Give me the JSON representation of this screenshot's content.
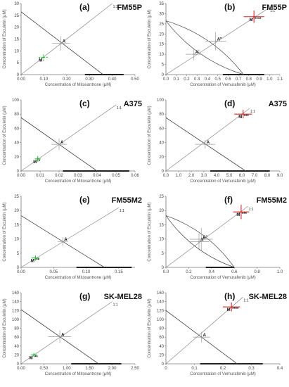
{
  "chart_data": [
    {
      "type": "line",
      "panel": "(a)",
      "cell_line": "FM55P",
      "xlabel": "Concentration of Mitoxantrone (μM)",
      "ylabel": "Concentration of Esculetin (μM)",
      "xlim": [
        0,
        0.5
      ],
      "ylim": [
        0,
        30
      ],
      "xticks": [
        0,
        0.1,
        0.2,
        0.3,
        0.4,
        0.5
      ],
      "xtick_labels": [
        "0.00",
        "0.10",
        "0.20",
        "0.30",
        "0.40",
        "0.50"
      ],
      "yticks": [
        0,
        5,
        10,
        15,
        20,
        25,
        30
      ],
      "ytick_labels": [
        "0",
        "5",
        "10",
        "15",
        "20",
        "25",
        "30"
      ],
      "isobole": [
        [
          0,
          26.5
        ],
        [
          0.36,
          0
        ]
      ],
      "ratio_line": [
        [
          0,
          0
        ],
        [
          0.4,
          30
        ]
      ],
      "ratio_label": "1:1",
      "point_A": {
        "label": "A",
        "x": 0.175,
        "y": 13.2,
        "xerr": 0.04,
        "yerr": 3
      },
      "point_M": {
        "label": "M",
        "stars": "",
        "x": 0.098,
        "y": 7.3,
        "xerr": 0.02,
        "yerr": 1.5,
        "color": "#22bb33",
        "dashed": true
      },
      "isobole_band": {
        "x": [
          0.28,
          0.45
        ]
      }
    },
    {
      "type": "line",
      "panel": "(b)",
      "cell_line": "FM55P",
      "xlabel": "Concentration of Vemurafenib (μM)",
      "ylabel": "Concentration of Esculetin (μM)",
      "xlim": [
        0,
        1.1
      ],
      "ylim": [
        0,
        35
      ],
      "xticks": [
        0,
        0.1,
        0.2,
        0.3,
        0.4,
        0.5,
        0.6,
        0.7,
        0.8,
        0.9,
        1.0,
        1.1
      ],
      "xtick_labels": [
        "0.0",
        "0.1",
        "0.2",
        "0.3",
        "0.4",
        "0.5",
        "0.6",
        "0.7",
        "0.8",
        "0.9",
        "1.0",
        "1.1"
      ],
      "yticks": [
        0,
        5,
        10,
        15,
        20,
        25,
        30,
        35
      ],
      "ytick_labels": [
        "0",
        "5",
        "10",
        "15",
        "20",
        "25",
        "30",
        "35"
      ],
      "isobole": [
        [
          0,
          26.5
        ],
        [
          0.75,
          0
        ]
      ],
      "lens": true,
      "ratio_line": [
        [
          0,
          0
        ],
        [
          1.0,
          33
        ]
      ],
      "ratio_label": "1:1",
      "point_A": {
        "label": "A'",
        "x": 0.27,
        "y": 10,
        "xerr": 0.08,
        "yerr": 3
      },
      "point_A2": {
        "label": "A''",
        "x": 0.48,
        "y": 16.5,
        "xerr": 0.1,
        "yerr": 4.5
      },
      "point_M": {
        "label": "M",
        "stars": "****",
        "x": 0.85,
        "y": 28.5,
        "xerr": 0.1,
        "yerr": 3,
        "color": "#dd2222",
        "dashed": false
      },
      "isobole_band": {
        "x": [
          0.55,
          0.95
        ]
      }
    },
    {
      "type": "line",
      "panel": "(c)",
      "cell_line": "A375",
      "xlabel": "Concentration of Mitoxantrone (μM)",
      "ylabel": "Concentration of Esculetin (μM)",
      "xlim": [
        0,
        0.06
      ],
      "ylim": [
        0,
        100
      ],
      "xticks": [
        0,
        0.01,
        0.02,
        0.03,
        0.04,
        0.05,
        0.06
      ],
      "xtick_labels": [
        "0.00",
        "0.01",
        "0.02",
        "0.03",
        "0.04",
        "0.05",
        "0.06"
      ],
      "yticks": [
        0,
        20,
        40,
        60,
        80,
        100
      ],
      "ytick_labels": [
        "0",
        "20",
        "40",
        "60",
        "80",
        "100"
      ],
      "isobole": [
        [
          0,
          75
        ],
        [
          0.04,
          0
        ]
      ],
      "ratio_line": [
        [
          0,
          0
        ],
        [
          0.05,
          93
        ]
      ],
      "ratio_label": "1:1",
      "point_A": {
        "label": "A",
        "x": 0.02,
        "y": 37.5,
        "xerr": 0.004,
        "yerr": 8
      },
      "point_M": {
        "label": "M",
        "stars": "*",
        "x": 0.0088,
        "y": 17,
        "xerr": 0.0015,
        "yerr": 4,
        "color": "#22bb33",
        "dashed": false
      },
      "isobole_band": {
        "x": [
          0.022,
          0.057
        ]
      }
    },
    {
      "type": "line",
      "panel": "(d)",
      "cell_line": "A375",
      "xlabel": "Concentration of Vemurafenib (μM)",
      "ylabel": "Concentration of Esculetin (μM)",
      "xlim": [
        0,
        9
      ],
      "ylim": [
        0,
        100
      ],
      "xticks": [
        0,
        1,
        2,
        3,
        4,
        5,
        6,
        7,
        8,
        9
      ],
      "xtick_labels": [
        "0.0",
        "1.0",
        "2.0",
        "3.0",
        "4.0",
        "5.0",
        "6.0",
        "7.0",
        "8.0",
        "9.0"
      ],
      "yticks": [
        0,
        20,
        40,
        60,
        80,
        100
      ],
      "ytick_labels": [
        "0",
        "20",
        "40",
        "60",
        "80",
        "100"
      ],
      "isobole": [
        [
          0,
          75
        ],
        [
          6.3,
          0
        ]
      ],
      "ratio_line": [
        [
          0,
          0
        ],
        [
          6.6,
          88
        ]
      ],
      "ratio_label": "1:1",
      "point_A": {
        "label": "A",
        "x": 3.1,
        "y": 37.5,
        "xerr": 0.8,
        "yerr": 6
      },
      "point_M": {
        "label": "M",
        "stars": "***",
        "x": 6.1,
        "y": 80,
        "xerr": 0.7,
        "yerr": 6,
        "color": "#dd2222",
        "dashed": false
      },
      "isobole_band": {
        "x": [
          3.5,
          8.2
        ]
      }
    },
    {
      "type": "line",
      "panel": "(e)",
      "cell_line": "FM55M2",
      "xlabel": "Concentration of Mitoxantrone (μM)",
      "ylabel": "Concentration of Esculetin (μM)",
      "xlim": [
        0,
        0.175
      ],
      "ylim": [
        0,
        25
      ],
      "xticks": [
        0,
        0.05,
        0.1,
        0.15
      ],
      "xtick_labels": [
        "0.00",
        "0.05",
        "0.10",
        "0.15"
      ],
      "yticks": [
        0,
        5,
        10,
        15,
        20,
        25
      ],
      "ytick_labels": [
        "0",
        "5",
        "10",
        "15",
        "20",
        "25"
      ],
      "isobole": [
        [
          0,
          18.2
        ],
        [
          0.128,
          0
        ]
      ],
      "ratio_line": [
        [
          0,
          0
        ],
        [
          0.15,
          21
        ]
      ],
      "ratio_label": "1:1",
      "point_A": {
        "label": "A",
        "x": 0.064,
        "y": 9.1,
        "xerr": 0.008,
        "yerr": 1.5
      },
      "point_M": {
        "label": "M",
        "stars": "**",
        "x": 0.022,
        "y": 3.3,
        "xerr": 0.006,
        "yerr": 0.9,
        "color": "#22bb33",
        "dashed": false
      },
      "isobole_band": {
        "x": [
          0.085,
          0.17
        ]
      }
    },
    {
      "type": "line",
      "panel": "(f)",
      "cell_line": "FM55M2",
      "xlabel": "Concentration of Vemurafenib (μM)",
      "ylabel": "Concentration of Esculetin (μM)",
      "xlim": [
        0,
        1.0
      ],
      "ylim": [
        0,
        25
      ],
      "xticks": [
        0,
        0.2,
        0.4,
        0.6,
        0.8,
        1.0
      ],
      "xtick_labels": [
        "0.0",
        "0.2",
        "0.4",
        "0.6",
        "0.8",
        "1.0"
      ],
      "yticks": [
        0,
        5,
        10,
        15,
        20,
        25
      ],
      "ytick_labels": [
        "0",
        "5",
        "10",
        "15",
        "20",
        "25"
      ],
      "isobole": [
        [
          0,
          18.2
        ],
        [
          0.6,
          0
        ]
      ],
      "lens": true,
      "ratio_line": [
        [
          0,
          0
        ],
        [
          0.72,
          21.5
        ]
      ],
      "ratio_label": "1:1",
      "point_A": {
        "label": "A'",
        "x": 0.29,
        "y": 9.0,
        "xerr": 0.09,
        "yerr": 3
      },
      "point_A2": {
        "label": "A''",
        "x": 0.31,
        "y": 9.9,
        "xerr": 0.1,
        "yerr": 4
      },
      "point_M": {
        "label": "M",
        "stars": "***",
        "x": 0.66,
        "y": 19.5,
        "xerr": 0.07,
        "yerr": 2.5,
        "color": "#dd2222",
        "dashed": false
      },
      "isobole_band": {
        "x": [
          0.35,
          0.6
        ]
      }
    },
    {
      "type": "line",
      "panel": "(g)",
      "cell_line": "SK-MEL28",
      "xlabel": "Concentration of Mitoxantrone (μM)",
      "ylabel": "Concentration of Esculetin (μM)",
      "xlim": [
        0,
        2.5
      ],
      "ylim": [
        0,
        160
      ],
      "xticks": [
        0,
        0.5,
        1.0,
        1.5,
        2.0,
        2.5
      ],
      "xtick_labels": [
        "0.00",
        "0.50",
        "1.00",
        "1.50",
        "2.00",
        "2.50"
      ],
      "yticks": [
        0,
        20,
        40,
        60,
        80,
        100,
        120,
        140,
        160
      ],
      "ytick_labels": [
        "0",
        "20",
        "40",
        "60",
        "80",
        "100",
        "120",
        "140",
        "160"
      ],
      "isobole": [
        [
          0,
          122
        ],
        [
          1.7,
          0
        ]
      ],
      "ratio_line": [
        [
          0,
          0
        ],
        [
          2.0,
          140
        ]
      ],
      "ratio_label": "1:1",
      "point_A": {
        "label": "A",
        "x": 0.85,
        "y": 61,
        "xerr": 0.25,
        "yerr": 14
      },
      "point_M": {
        "label": "M",
        "stars": "**",
        "x": 0.28,
        "y": 20,
        "xerr": 0.07,
        "yerr": 4,
        "color": "#22bb33",
        "dashed": false
      },
      "isobole_band": {
        "x": [
          1.1,
          2.2
        ]
      }
    },
    {
      "type": "line",
      "panel": "(h)",
      "cell_line": "SK-MEL28",
      "xlabel": "Concentration of Vemurafenib (μM)",
      "ylabel": "Concentration of Esculetin (μM)",
      "xlim": [
        0,
        0.4
      ],
      "ylim": [
        0,
        160
      ],
      "xticks": [
        0,
        0.1,
        0.2,
        0.3,
        0.4
      ],
      "xtick_labels": [
        "0",
        "0.1",
        "0.2",
        "0.3",
        "0.4"
      ],
      "yticks": [
        0,
        20,
        40,
        60,
        80,
        100,
        120,
        140,
        160
      ],
      "ytick_labels": [
        "0",
        "20",
        "40",
        "60",
        "80",
        "100",
        "120",
        "140",
        "160"
      ],
      "isobole": [
        [
          0,
          120
        ],
        [
          0.25,
          0
        ]
      ],
      "ratio_line": [
        [
          0,
          0
        ],
        [
          0.27,
          150
        ]
      ],
      "ratio_label": "1:1",
      "point_A": {
        "label": "A",
        "x": 0.125,
        "y": 60,
        "xerr": 0.03,
        "yerr": 12
      },
      "point_M": {
        "label": "M",
        "stars": "****",
        "x": 0.23,
        "y": 128,
        "xerr": 0.03,
        "yerr": 10,
        "color": "#dd2222",
        "dashed": false
      },
      "isobole_band": {
        "x": [
          0.12,
          0.34
        ]
      }
    }
  ]
}
